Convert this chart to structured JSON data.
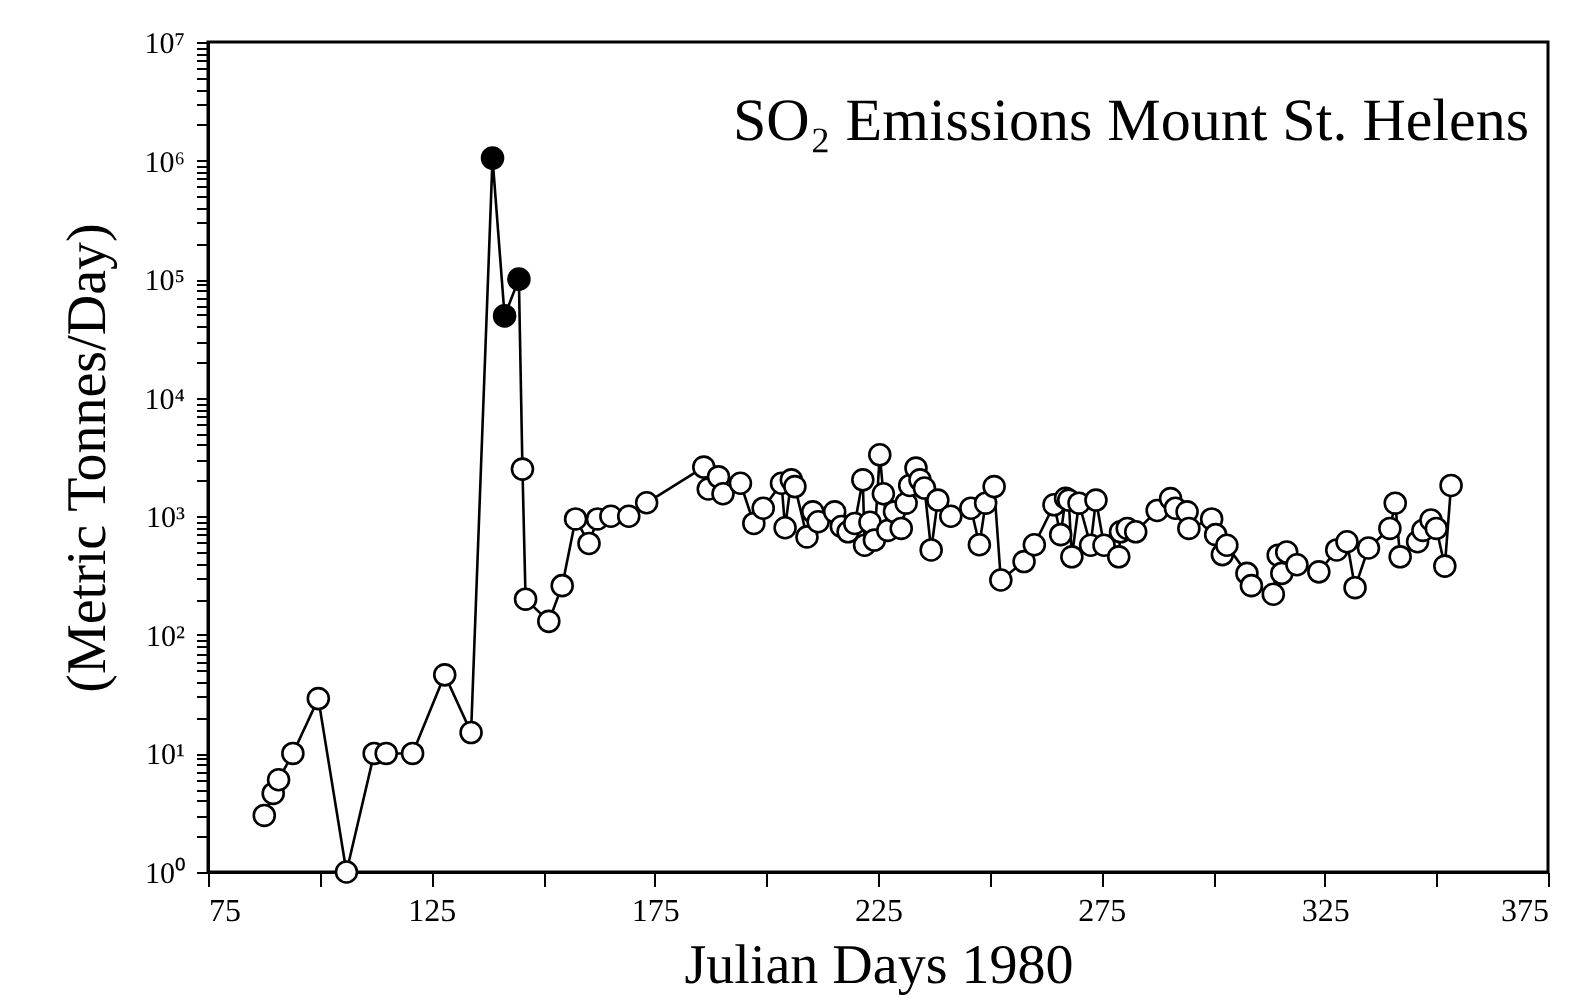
{
  "chart_data": {
    "type": "line",
    "title": "SO₂ Emissions Mount St. Helens",
    "xlabel": "Julian Days 1980",
    "ylabel": "(Metric Tonnes/Day)",
    "log": "y",
    "grid": false,
    "xlim": [
      75,
      375
    ],
    "xticks": [
      75,
      {
        "value": 100,
        "label": null
      },
      125,
      {
        "value": 150,
        "label": null
      },
      175,
      {
        "value": 200,
        "label": null
      },
      225,
      {
        "value": 250,
        "label": null
      },
      275,
      {
        "value": 300,
        "label": null
      },
      325,
      {
        "value": 350,
        "label": null
      },
      375
    ],
    "ylim": [
      1,
      10000000
    ],
    "yticks": [
      {
        "value": 1,
        "label": "10⁰"
      },
      {
        "value": 2,
        "label": null
      },
      {
        "value": 3,
        "label": null
      },
      {
        "value": 4,
        "label": null
      },
      {
        "value": 5,
        "label": null
      },
      {
        "value": 6,
        "label": null
      },
      {
        "value": 7,
        "label": null
      },
      {
        "value": 8,
        "label": null
      },
      {
        "value": 9,
        "label": null
      },
      {
        "value": 10,
        "label": "10¹"
      },
      {
        "value": 20,
        "label": null
      },
      {
        "value": 30,
        "label": null
      },
      {
        "value": 40,
        "label": null
      },
      {
        "value": 50,
        "label": null
      },
      {
        "value": 60,
        "label": null
      },
      {
        "value": 70,
        "label": null
      },
      {
        "value": 80,
        "label": null
      },
      {
        "value": 90,
        "label": null
      },
      {
        "value": 100,
        "label": "10²"
      },
      {
        "value": 200,
        "label": null
      },
      {
        "value": 300,
        "label": null
      },
      {
        "value": 400,
        "label": null
      },
      {
        "value": 500,
        "label": null
      },
      {
        "value": 600,
        "label": null
      },
      {
        "value": 700,
        "label": null
      },
      {
        "value": 800,
        "label": null
      },
      {
        "value": 900,
        "label": null
      },
      {
        "value": 1000,
        "label": "10³"
      },
      {
        "value": 2000,
        "label": null
      },
      {
        "value": 3000,
        "label": null
      },
      {
        "value": 4000,
        "label": null
      },
      {
        "value": 5000,
        "label": null
      },
      {
        "value": 6000,
        "label": null
      },
      {
        "value": 7000,
        "label": null
      },
      {
        "value": 8000,
        "label": null
      },
      {
        "value": 9000,
        "label": null
      },
      {
        "value": 10000,
        "label": "10⁴"
      },
      {
        "value": 20000,
        "label": null
      },
      {
        "value": 30000,
        "label": null
      },
      {
        "value": 40000,
        "label": null
      },
      {
        "value": 50000,
        "label": null
      },
      {
        "value": 60000,
        "label": null
      },
      {
        "value": 70000,
        "label": null
      },
      {
        "value": 80000,
        "label": null
      },
      {
        "value": 90000,
        "label": null
      },
      {
        "value": 100000,
        "label": "10⁵"
      },
      {
        "value": 200000,
        "label": null
      },
      {
        "value": 300000,
        "label": null
      },
      {
        "value": 400000,
        "label": null
      },
      {
        "value": 500000,
        "label": null
      },
      {
        "value": 600000,
        "label": null
      },
      {
        "value": 700000,
        "label": null
      },
      {
        "value": 800000,
        "label": null
      },
      {
        "value": 900000,
        "label": null
      },
      {
        "value": 1000000,
        "label": "10⁶"
      },
      {
        "value": 2000000,
        "label": null
      },
      {
        "value": 3000000,
        "label": null
      },
      {
        "value": 4000000,
        "label": null
      },
      {
        "value": 5000000,
        "label": null
      },
      {
        "value": 6000000,
        "label": null
      },
      {
        "value": 7000000,
        "label": null
      },
      {
        "value": 8000000,
        "label": null
      },
      {
        "value": 9000000,
        "label": null
      },
      {
        "value": 10000000,
        "label": "10⁷"
      }
    ],
    "x": [
      87.6,
      89.6,
      90.8,
      94,
      99.7,
      106,
      112.2,
      114.9,
      120.8,
      128,
      133.9,
      138.7,
      141.4,
      144.6,
      145.4,
      146.1,
      151.3,
      154.3,
      157.3,
      160.3,
      162.2,
      165.2,
      169.2,
      173.2,
      186,
      187,
      189.3,
      190.3,
      194.2,
      197.2,
      199.3,
      203.4,
      204.2,
      205.6,
      206.4,
      209.1,
      210.4,
      211.6,
      215.3,
      216.8,
      218.3,
      219.8,
      221.6,
      222,
      223.2,
      224.2,
      225.4,
      226.2,
      227.2,
      228.7,
      230.2,
      231.3,
      232.1,
      233.5,
      234.4,
      235.4,
      236.9,
      238.4,
      241.3,
      245.8,
      247.7,
      249.1,
      251,
      252.5,
      257.7,
      260,
      264.4,
      265.9,
      267,
      267.7,
      268.4,
      270,
      272.6,
      273.8,
      275.6,
      278.9,
      279.3,
      280.8,
      282.7,
      287.5,
      290.5,
      291.6,
      294.2,
      294.6,
      299.7,
      300.6,
      302.1,
      303.1,
      307.6,
      308.6,
      313.5,
      314.6,
      315.4,
      316.5,
      318.8,
      323.7,
      327.7,
      330,
      331.8,
      334.8,
      339.6,
      340.8,
      341.9,
      345.8,
      347,
      348.8,
      350,
      351.9,
      353.3
    ],
    "series": [
      {
        "marker": "none",
        "color": "#000000",
        "values": [
          3,
          4.6,
          6,
          10,
          29,
          1,
          10,
          10,
          10,
          46,
          15,
          1050000,
          49000,
          100000,
          2500,
          200,
          130,
          260,
          950,
          590,
          950,
          1000,
          1000,
          1300,
          2600,
          1700,
          2150,
          1550,
          1900,
          870,
          1170,
          1900,
          800,
          2030,
          1780,
          670,
          1090,
          900,
          1090,
          820,
          740,
          870,
          2030,
          570,
          890,
          630,
          3300,
          1550,
          760,
          1090,
          790,
          1290,
          1820,
          2550,
          2030,
          1730,
          520,
          1370,
          1000,
          1170,
          575,
          1290,
          1780,
          290,
          415,
          575,
          1250,
          700,
          1420,
          1370,
          455,
          1290,
          570,
          1370,
          570,
          455,
          740,
          790,
          740,
          1120,
          1410,
          1170,
          1090,
          790,
          950,
          700,
          475,
          570,
          330,
          260,
          220,
          470,
          330,
          500,
          390,
          340,
          520,
          610,
          250,
          540,
          790,
          1290,
          455,
          610,
          760,
          930,
          790,
          380,
          1820
        ]
      },
      {
        "type": "scatter",
        "marker": "circle",
        "color": "#ffffff",
        "x": [
          87.6,
          89.6,
          90.8,
          94,
          99.7,
          106,
          112.2,
          114.9,
          120.8,
          128,
          133.9,
          145.4,
          146.1,
          151.3,
          154.3,
          157.3,
          160.3,
          162.2,
          165.2,
          169.2,
          173.2,
          186,
          187,
          189.3,
          190.3,
          194.2,
          197.2,
          199.3,
          203.4,
          204.2,
          205.6,
          206.4,
          209.1,
          210.4,
          211.6,
          215.3,
          216.8,
          218.3,
          219.8,
          221.6,
          222,
          223.2,
          224.2,
          225.4,
          226.2,
          227.2,
          228.7,
          230.2,
          231.3,
          232.1,
          233.5,
          234.4,
          235.4,
          236.9,
          238.4,
          241.3,
          245.8,
          247.7,
          249.1,
          251,
          252.5,
          257.7,
          260,
          264.4,
          265.9,
          267,
          267.7,
          268.4,
          270,
          272.6,
          273.8,
          275.6,
          278.9,
          279.3,
          280.8,
          282.7,
          287.5,
          290.5,
          291.6,
          294.2,
          294.6,
          299.7,
          300.6,
          302.1,
          303.1,
          307.6,
          308.6,
          313.5,
          314.6,
          315.4,
          316.5,
          318.8,
          323.7,
          327.7,
          330,
          331.8,
          334.8,
          339.6,
          340.8,
          341.9,
          345.8,
          347,
          348.8,
          350,
          351.9,
          353.3
        ],
        "values": [
          3,
          4.6,
          6,
          10,
          29,
          1,
          10,
          10,
          10,
          46,
          15,
          2500,
          200,
          130,
          260,
          950,
          590,
          950,
          1000,
          1000,
          1300,
          2600,
          1700,
          2150,
          1550,
          1900,
          870,
          1170,
          1900,
          800,
          2030,
          1780,
          670,
          1090,
          900,
          1090,
          820,
          740,
          870,
          2030,
          570,
          890,
          630,
          3300,
          1550,
          760,
          1090,
          790,
          1290,
          1820,
          2550,
          2030,
          1730,
          520,
          1370,
          1000,
          1170,
          575,
          1290,
          1780,
          290,
          415,
          575,
          1250,
          700,
          1420,
          1370,
          455,
          1290,
          570,
          1370,
          570,
          455,
          740,
          790,
          740,
          1120,
          1410,
          1170,
          1090,
          790,
          950,
          700,
          475,
          570,
          330,
          260,
          220,
          470,
          330,
          500,
          390,
          340,
          520,
          610,
          250,
          540,
          790,
          1290,
          455,
          610,
          760,
          930,
          790,
          380,
          1820
        ]
      },
      {
        "type": "scatter",
        "marker": "circle",
        "color": "#000000",
        "x": [
          138.7,
          141.4,
          144.6
        ],
        "values": [
          1050000,
          49000,
          100000
        ]
      }
    ]
  }
}
